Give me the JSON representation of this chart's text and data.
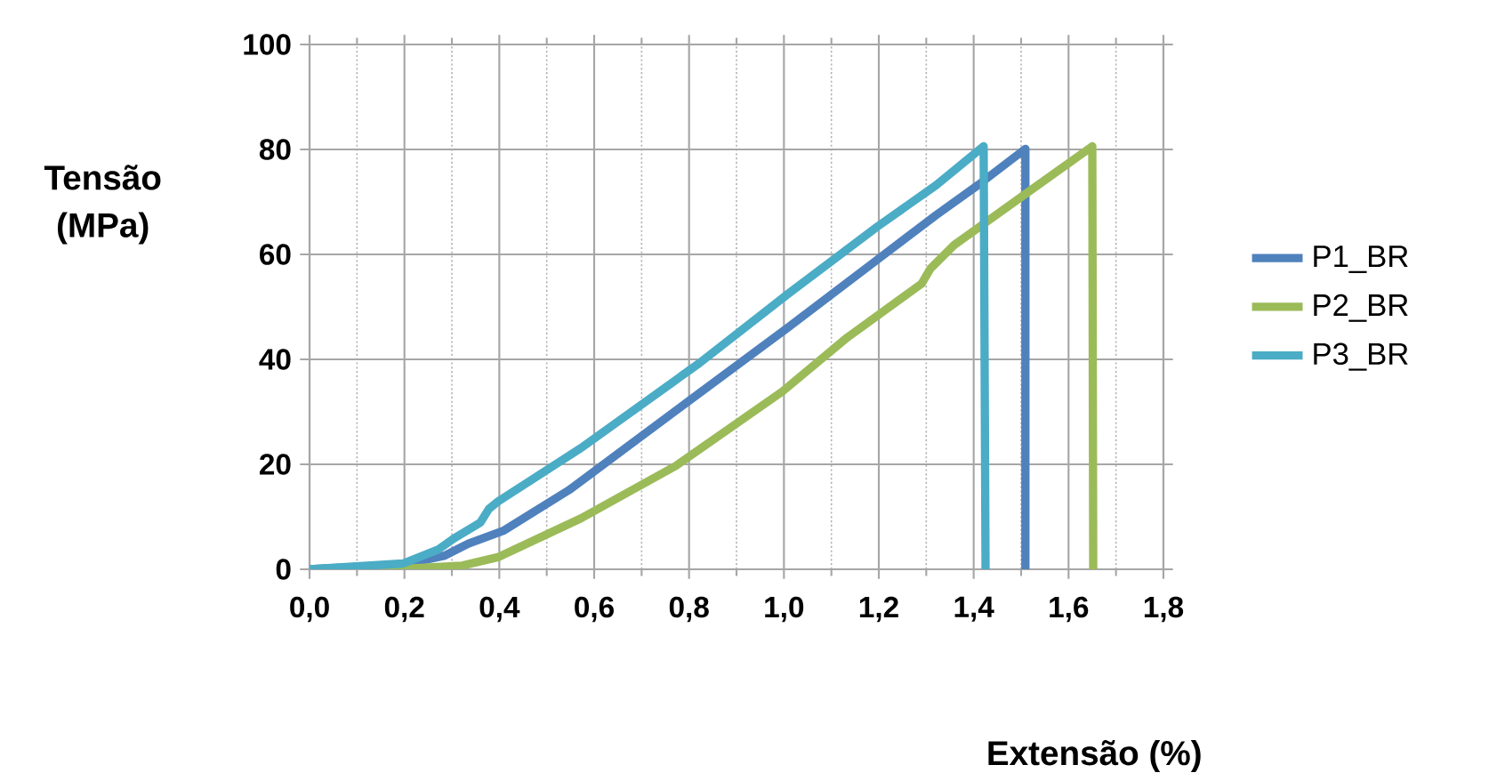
{
  "chart_data": {
    "type": "line",
    "xlabel": "Extensão (%)",
    "ylabel": "Tensão (MPa)",
    "xlim": [
      0,
      1.8
    ],
    "ylim": [
      0,
      100
    ],
    "xticks": [
      {
        "value": 0,
        "label": "0,0"
      },
      {
        "value": 0.2,
        "label": "0,2"
      },
      {
        "value": 0.4,
        "label": "0,4"
      },
      {
        "value": 0.6,
        "label": "0,6"
      },
      {
        "value": 0.8,
        "label": "0,8"
      },
      {
        "value": 1.0,
        "label": "1,0"
      },
      {
        "value": 1.2,
        "label": "1,2"
      },
      {
        "value": 1.4,
        "label": "1,4"
      },
      {
        "value": 1.6,
        "label": "1,6"
      },
      {
        "value": 1.8,
        "label": "1,8"
      }
    ],
    "yticks": [
      0,
      20,
      40,
      60,
      80,
      100
    ],
    "grid": true,
    "legend": "right",
    "marker": "none",
    "line_style": "solid",
    "series": [
      {
        "name": "P1_BR",
        "color": "#4f81bd",
        "x": [
          0,
          0.197,
          0.285,
          0.335,
          0.41,
          0.547,
          0.797,
          1.009,
          1.197,
          1.321,
          1.409,
          1.509,
          1.509
        ],
        "values": [
          0,
          0.9,
          2.6,
          4.9,
          7.4,
          15.1,
          31.9,
          46.1,
          59,
          67.5,
          73.2,
          80.1,
          0
        ]
      },
      {
        "name": "P2_BR",
        "color": "#9bbb59",
        "x": [
          0,
          0.197,
          0.322,
          0.397,
          0.572,
          0.772,
          0.997,
          1.134,
          1.29,
          1.309,
          1.359,
          1.509,
          1.65,
          1.652
        ],
        "values": [
          0,
          0.1,
          0.7,
          2.3,
          9.7,
          19.7,
          33.9,
          44.2,
          54.4,
          57.3,
          61.8,
          71.5,
          80.6,
          0
        ]
      },
      {
        "name": "P3_BR",
        "color": "#4bacc6",
        "x": [
          0,
          0.197,
          0.272,
          0.303,
          0.36,
          0.378,
          0.397,
          0.572,
          0.822,
          1.009,
          1.197,
          1.321,
          1.421,
          1.425
        ],
        "values": [
          0,
          1.1,
          3.8,
          5.8,
          8.9,
          11.5,
          12.9,
          23.1,
          39.3,
          52.5,
          65.3,
          73.2,
          80.6,
          0
        ]
      }
    ]
  }
}
